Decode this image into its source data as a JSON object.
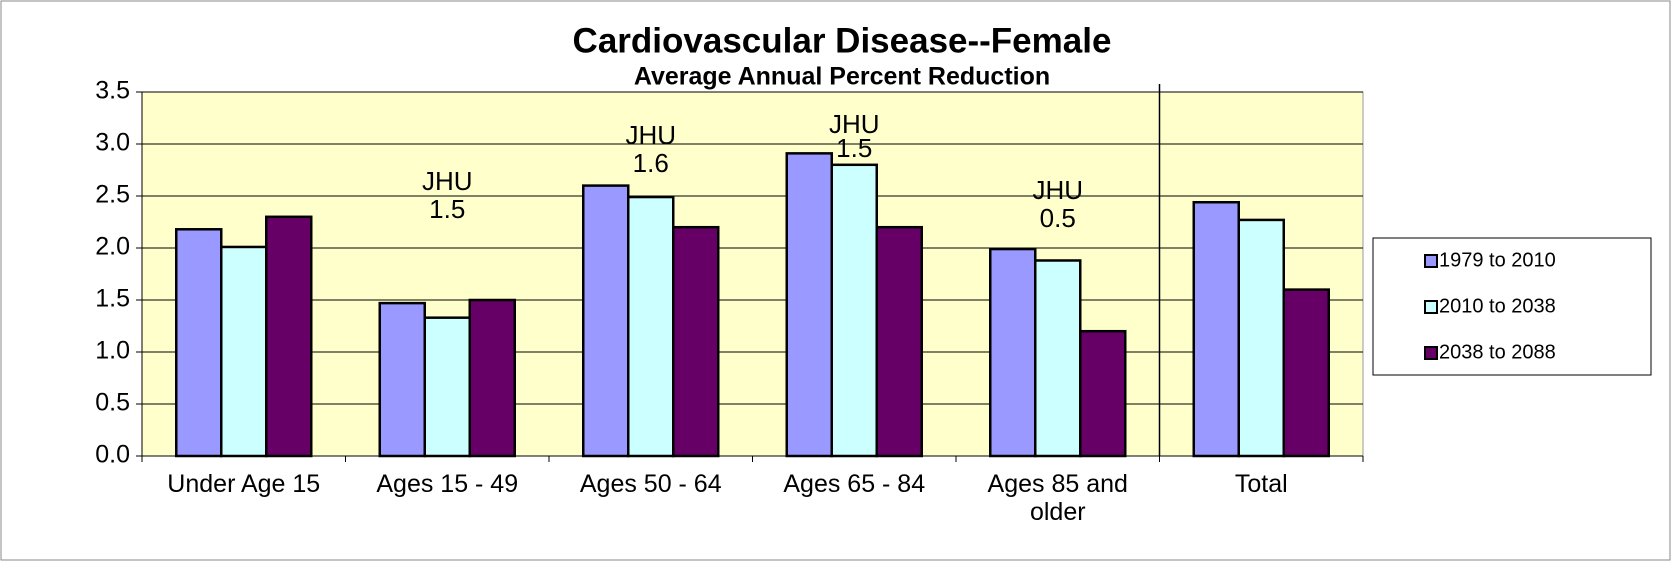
{
  "chart_data": {
    "type": "bar",
    "title": "Cardiovascular Disease--Female",
    "subtitle": "Average Annual Percent Reduction",
    "categories": [
      "Under Age 15",
      "Ages 15 - 49",
      "Ages 50 - 64",
      "Ages 65 - 84",
      "Ages 85 and older",
      "Total"
    ],
    "series": [
      {
        "name": "1979 to 2010",
        "color": "#9999ff",
        "values": [
          2.18,
          1.47,
          2.6,
          2.91,
          1.99,
          2.44
        ]
      },
      {
        "name": "2010 to 2038",
        "color": "#ccffff",
        "values": [
          2.01,
          1.33,
          2.49,
          2.8,
          1.88,
          2.27
        ]
      },
      {
        "name": "2038 to 2088",
        "color": "#660066",
        "values": [
          2.3,
          1.5,
          2.2,
          2.2,
          1.2,
          1.6
        ]
      }
    ],
    "annotations": [
      {
        "x": "Ages 15 - 49",
        "text": [
          "JHU",
          "1.5"
        ]
      },
      {
        "x": "Ages 50 - 64",
        "text": [
          "JHU",
          "1.6"
        ]
      },
      {
        "x": "Ages 65 - 84",
        "text": [
          "JHU",
          "1.5"
        ]
      },
      {
        "x": "Ages 85 and older",
        "text": [
          "JHU",
          "0.5"
        ]
      }
    ],
    "ylim": [
      0,
      3.5
    ],
    "yticks": [
      {
        "value": 0,
        "label": "0.0"
      },
      {
        "value": 0.5,
        "label": "0.5"
      },
      {
        "value": 1,
        "label": "1.0"
      },
      {
        "value": 1.5,
        "label": "1.5"
      },
      {
        "value": 2,
        "label": "2.0"
      },
      {
        "value": 2.5,
        "label": "2.5"
      },
      {
        "value": 3,
        "label": "3.0"
      },
      {
        "value": 3.5,
        "label": "3.5"
      }
    ],
    "grid": true,
    "legend": "right"
  }
}
